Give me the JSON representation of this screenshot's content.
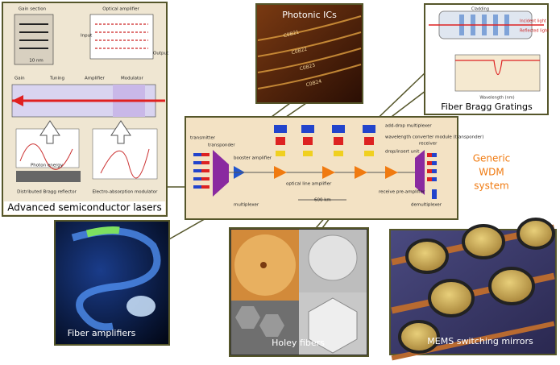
{
  "panels": {
    "lasers": {
      "caption": "Advanced semiconductor lasers",
      "labels": [
        "Gain section",
        "Optical amplifier",
        "Gain",
        "Tuning",
        "Amplifier",
        "Modulator",
        "Input",
        "Output",
        "10 nm",
        "Photon energy",
        "Distributed Bragg reflector",
        "Electro-absorption modulator"
      ]
    },
    "photonic_ics": {
      "caption": "Photonic ICs",
      "chips": [
        "C0B21",
        "C0B22",
        "C0B23",
        "C0B24"
      ]
    },
    "fbg": {
      "caption": "Fiber Bragg Gratings",
      "labels": [
        "Cladding",
        "Incident light",
        "Reflected light",
        "Wavelength (nm)"
      ]
    },
    "fiber_amplifiers": {
      "caption": "Fiber amplifiers"
    },
    "holey_fibers": {
      "caption": "Holey fibers"
    },
    "mems": {
      "caption": "MEMS switching mirrors"
    }
  },
  "wdm": {
    "title_lines": [
      "Generic",
      "WDM",
      "system"
    ],
    "labels": [
      "transmitter",
      "transponder",
      "booster amplifier",
      "multiplexer",
      "optical line amplifier",
      "600 km",
      "add-drop multiplexer",
      "wavelength converter module (transponder)",
      "drop/insert unit",
      "receiver",
      "receive pre-amplifier",
      "demultiplexer"
    ]
  }
}
